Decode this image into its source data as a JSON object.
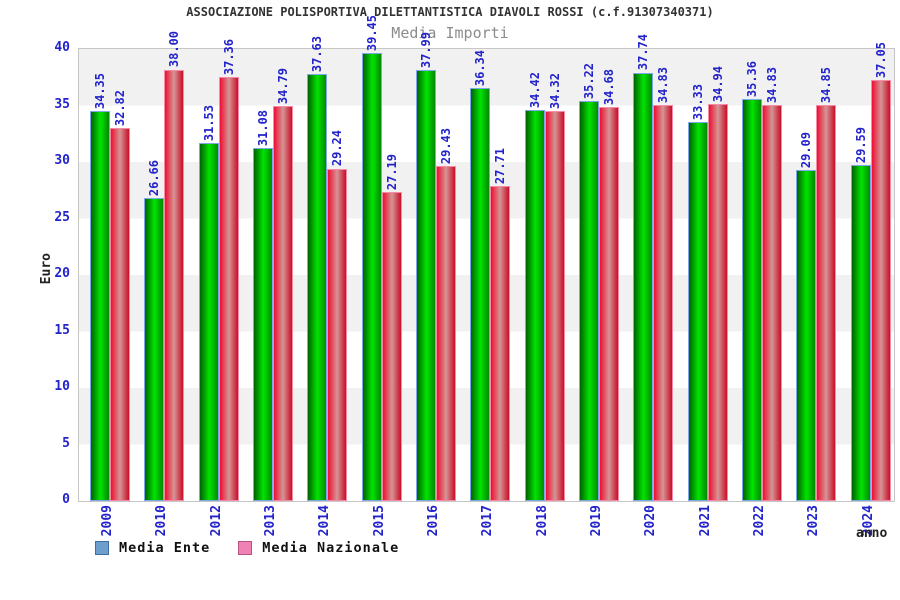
{
  "header": {
    "title": "ASSOCIAZIONE POLISPORTIVA DILETTANTISTICA DIAVOLI ROSSI (c.f.91307340371)",
    "subtitle": "Media Importi"
  },
  "chart_data": {
    "type": "bar",
    "categories": [
      "2009",
      "2010",
      "2012",
      "2013",
      "2014",
      "2015",
      "2016",
      "2017",
      "2018",
      "2019",
      "2020",
      "2021",
      "2022",
      "2023",
      "2024"
    ],
    "series": [
      {
        "name": "Media Ente",
        "bar_color": "green-gradient",
        "legend_color": "#6d9ece",
        "values": [
          34.35,
          26.66,
          31.53,
          31.08,
          37.63,
          39.45,
          37.99,
          36.34,
          34.42,
          35.22,
          37.74,
          33.33,
          35.36,
          29.09,
          29.59
        ]
      },
      {
        "name": "Media Nazionale",
        "bar_color": "red-gradient",
        "legend_color": "#ee82b4",
        "values": [
          32.82,
          38.0,
          37.36,
          34.79,
          29.24,
          27.19,
          29.43,
          27.71,
          34.32,
          34.68,
          34.83,
          34.94,
          34.83,
          34.85,
          37.05
        ]
      }
    ],
    "xlabel": "anno",
    "ylabel": "Euro",
    "ylim": [
      0,
      40
    ],
    "yticks": [
      0,
      5,
      10,
      15,
      20,
      25,
      30,
      35,
      40
    ],
    "grid": "banded-horizontal-every-5",
    "legend_position": "bottom-left",
    "value_labels": "rotated-90-above-bars",
    "tick_label_color": "#2323cb",
    "band_color": "#f1f1f1"
  }
}
